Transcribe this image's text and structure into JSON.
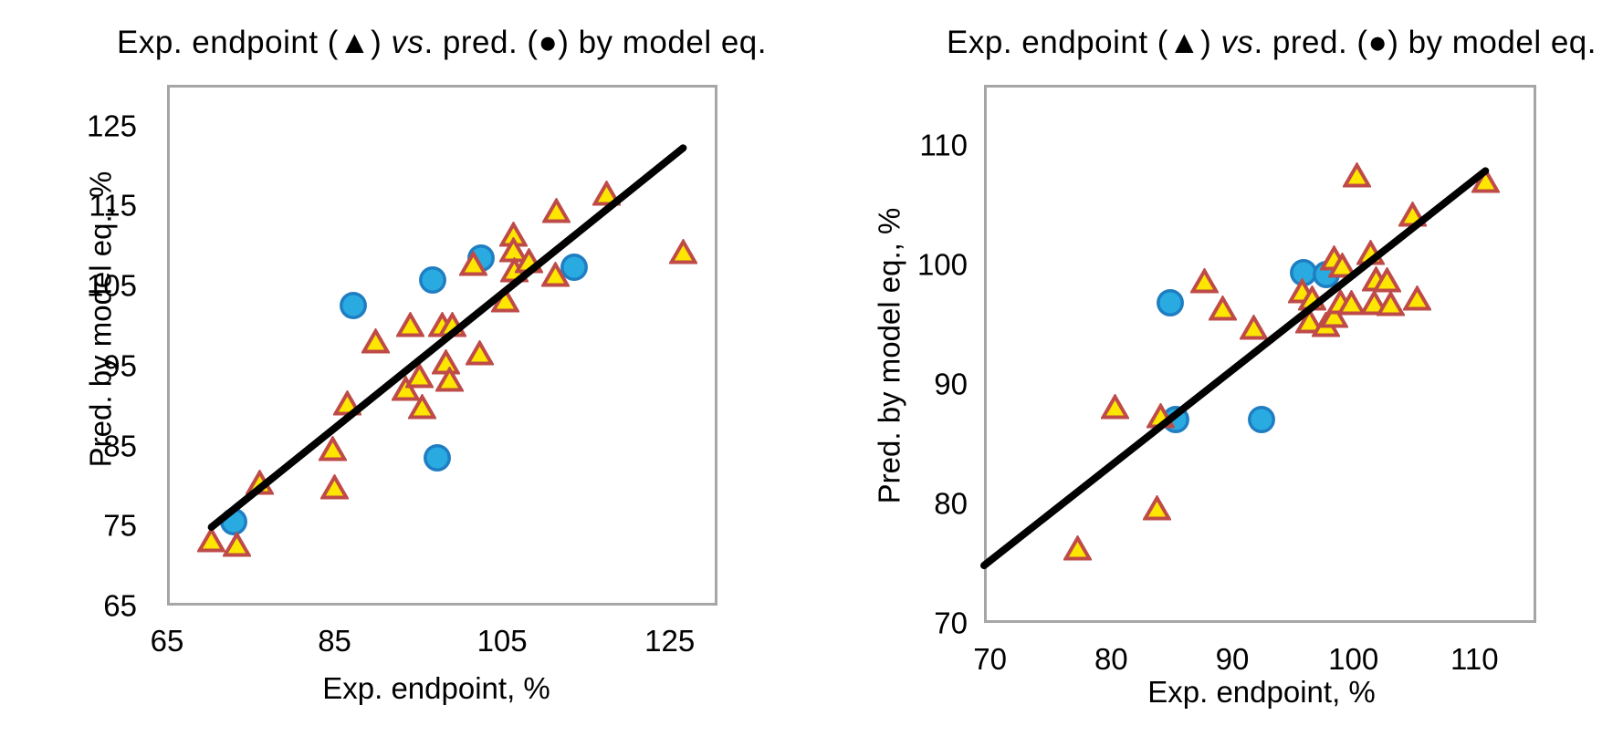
{
  "figure": {
    "background_color": "#ffffff",
    "description_title": "Exp. endpoint (▲) vs. pred. (●) by model eq."
  },
  "style": {
    "triangle_fill": "#ffe600",
    "triangle_stroke": "#be4b48",
    "circle_fill": "#29abe2",
    "circle_stroke": "#1f7ec2",
    "trend_line_color": "#000000",
    "plot_border_color": "#a6a6a6",
    "text_color": "#000000"
  },
  "chart_data": [
    {
      "type": "scatter",
      "title": "Exp. endpoint (▲) vs. pred. (●) by model eq.",
      "title_parts": [
        "Exp. endpoint (▲) ",
        "vs",
        ". pred. (●) by model eq."
      ],
      "xlabel": "Exp. endpoint, %",
      "ylabel": "Pred. by model eq., %",
      "xlim": [
        65,
        130.7
      ],
      "ylim": [
        65,
        130.1
      ],
      "xticks": [
        65,
        85,
        105,
        125
      ],
      "yticks": [
        65,
        75,
        85,
        95,
        105,
        115,
        125
      ],
      "grid": false,
      "legend": "none",
      "series": [
        {
          "name": "Exp. endpoint",
          "marker": "triangle",
          "points": [
            [
              70.3,
              73.1
            ],
            [
              73.3,
              72.5
            ],
            [
              76.1,
              80.3
            ],
            [
              84.8,
              84.5
            ],
            [
              85.0,
              79.7
            ],
            [
              86.5,
              90.2
            ],
            [
              89.9,
              98.0
            ],
            [
              93.5,
              92.0
            ],
            [
              95.1,
              93.6
            ],
            [
              95.4,
              89.7
            ],
            [
              98.3,
              95.3
            ],
            [
              98.7,
              93.2
            ],
            [
              102.3,
              96.5
            ],
            [
              94.0,
              100.0
            ],
            [
              97.9,
              100.0
            ],
            [
              99.0,
              100.0
            ],
            [
              105.4,
              103.1
            ],
            [
              101.6,
              107.6
            ],
            [
              106.3,
              111.3
            ],
            [
              106.3,
              109.4
            ],
            [
              106.5,
              106.8
            ],
            [
              108.2,
              108.0
            ],
            [
              111.4,
              106.3
            ],
            [
              111.5,
              114.3
            ],
            [
              117.5,
              116.4
            ],
            [
              126.6,
              109.1
            ]
          ]
        },
        {
          "name": "Pred. by model eq.",
          "marker": "circle",
          "points": [
            [
              72.9,
              75.5
            ],
            [
              87.2,
              102.5
            ],
            [
              96.7,
              105.7
            ],
            [
              97.2,
              83.5
            ],
            [
              102.5,
              108.4
            ],
            [
              113.6,
              107.3
            ]
          ]
        }
      ],
      "trendline": {
        "x1": 70.3,
        "y1": 74.8,
        "x2": 126.6,
        "y2": 122.2
      }
    },
    {
      "type": "scatter",
      "title": "Exp. endpoint (▲) vs. pred. (●) by model eq.",
      "title_parts": [
        "Exp. endpoint (▲) ",
        "vs",
        ". pred. (●) by model eq."
      ],
      "xlabel": "Exp. endpoint, %",
      "ylabel": "Pred. by model eq., %",
      "xlim": [
        69.5,
        115.1
      ],
      "ylim": [
        70,
        115
      ],
      "xticks": [
        70,
        80,
        90,
        100,
        110
      ],
      "yticks": [
        70,
        80,
        90,
        100,
        110
      ],
      "grid": false,
      "legend": "none",
      "series": [
        {
          "name": "Exp. endpoint",
          "marker": "triangle",
          "points": [
            [
              77.2,
              76.2
            ],
            [
              80.3,
              88.0
            ],
            [
              84.1,
              87.2
            ],
            [
              83.8,
              79.5
            ],
            [
              87.7,
              98.5
            ],
            [
              89.2,
              96.2
            ],
            [
              91.8,
              94.6
            ],
            [
              95.8,
              97.7
            ],
            [
              96.6,
              97.1
            ],
            [
              96.4,
              95.2
            ],
            [
              97.7,
              94.9
            ],
            [
              98.4,
              95.6
            ],
            [
              98.4,
              100.4
            ],
            [
              98.9,
              96.8
            ],
            [
              99.8,
              96.7
            ],
            [
              99.1,
              99.8
            ],
            [
              100.3,
              107.4
            ],
            [
              101.4,
              100.9
            ],
            [
              101.9,
              98.7
            ],
            [
              102.8,
              98.6
            ],
            [
              101.7,
              96.7
            ],
            [
              103.1,
              96.6
            ],
            [
              105.3,
              97.1
            ],
            [
              104.9,
              104.1
            ],
            [
              110.9,
              106.9
            ]
          ]
        },
        {
          "name": "Pred. by model eq.",
          "marker": "circle",
          "points": [
            [
              84.9,
              96.8
            ],
            [
              85.3,
              87.0
            ],
            [
              92.4,
              87.0
            ],
            [
              95.9,
              99.3
            ],
            [
              97.8,
              99.1
            ]
          ]
        }
      ],
      "trendline": {
        "x1": 69.5,
        "y1": 74.8,
        "x2": 110.9,
        "y2": 107.8
      }
    }
  ]
}
